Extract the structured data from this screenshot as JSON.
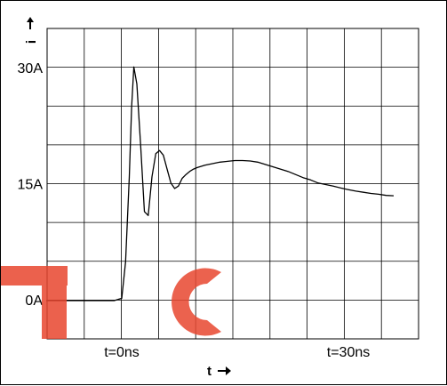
{
  "chart_data": {
    "type": "line",
    "title": "",
    "xlabel": "t",
    "ylabel": "i",
    "x_annotations": [
      {
        "x": 0,
        "text": "t=0ns"
      },
      {
        "x": 30,
        "text": "t=30ns"
      }
    ],
    "y_tick_labels": [
      {
        "y": 0,
        "text": "0A"
      },
      {
        "y": 15,
        "text": "15A"
      },
      {
        "y": 30,
        "text": "30A"
      }
    ],
    "xlim": [
      -10,
      40
    ],
    "ylim": [
      -5,
      35
    ],
    "x_unit": "ns",
    "y_unit": "A",
    "grid": true,
    "series": [
      {
        "color": "#000000",
        "x": [
          -10,
          -9,
          -8,
          -7,
          -6,
          -5,
          -4,
          -3,
          -2,
          -1,
          0,
          0.5,
          1,
          1.3,
          1.6,
          2,
          2.5,
          3,
          3.5,
          4,
          4.5,
          5,
          5.5,
          6,
          6.5,
          7,
          7.5,
          8,
          8.5,
          9,
          9.5,
          10,
          11,
          12,
          13,
          14,
          15,
          16,
          17,
          18,
          19,
          20,
          21,
          22,
          23,
          24,
          25,
          26,
          27,
          28,
          29,
          30,
          31,
          32,
          33,
          34,
          35,
          36
        ],
        "y": [
          0,
          0,
          0,
          0,
          0,
          0,
          0,
          0,
          0,
          0,
          0.3,
          5,
          16,
          25,
          30.2,
          28,
          20,
          11.5,
          11,
          16,
          19,
          19.4,
          18.8,
          17,
          15.2,
          14.5,
          14.8,
          15.8,
          16.3,
          16.7,
          17.0,
          17.2,
          17.5,
          17.7,
          17.9,
          18.0,
          18.1,
          18.1,
          18.05,
          17.9,
          17.6,
          17.3,
          17.0,
          16.7,
          16.3,
          15.9,
          15.6,
          15.2,
          15.0,
          14.8,
          14.55,
          14.35,
          14.15,
          14.0,
          13.85,
          13.75,
          13.6,
          13.55
        ]
      }
    ]
  }
}
